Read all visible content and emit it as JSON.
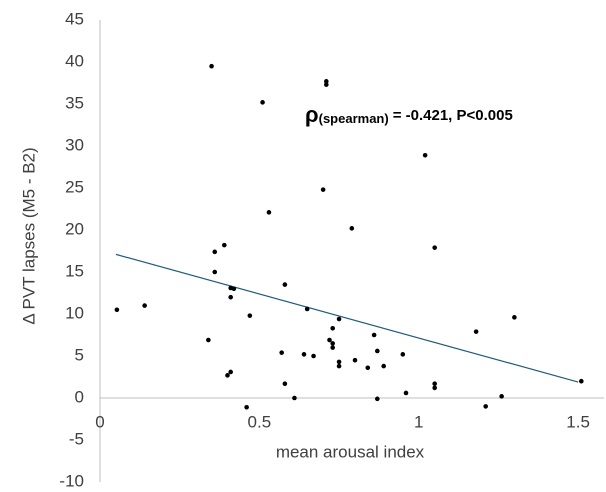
{
  "chart_data": {
    "type": "scatter",
    "x_label": "mean arousal index",
    "y_label": "Δ  PVT lapses (M5 - B2)",
    "annotation": {
      "symbol": "ρ",
      "subscript": "(spearman)",
      "text": "= -0.421, P<0.005"
    },
    "xlim": [
      0,
      1.6
    ],
    "xticks": [
      0,
      0.5,
      1,
      1.5
    ],
    "ylim": [
      -10,
      45
    ],
    "yticks": [
      -10,
      -5,
      0,
      5,
      10,
      15,
      20,
      25,
      30,
      35,
      40,
      45
    ],
    "grid": false,
    "series": [
      {
        "color": "#000000",
        "x": [
          0.053,
          0.14,
          0.35,
          0.51,
          0.71,
          0.71,
          0.7,
          0.53,
          0.79,
          1.02,
          1.05,
          0.36,
          0.39,
          0.36,
          0.58,
          0.41,
          0.42,
          0.41,
          0.47,
          0.65,
          0.75,
          0.73,
          0.34,
          0.72,
          0.73,
          0.73,
          0.64,
          0.67,
          0.57,
          0.8,
          0.75,
          0.75,
          0.84,
          0.89,
          0.87,
          0.86,
          0.95,
          1.18,
          1.3,
          0.41,
          0.4,
          0.58,
          0.96,
          1.05,
          1.05,
          1.51,
          0.61,
          0.87,
          1.26,
          0.46,
          1.21
        ],
        "values": [
          10.5,
          11,
          39.5,
          35.2,
          37.7,
          37.3,
          24.8,
          22.1,
          20.2,
          28.9,
          17.9,
          17.4,
          18.2,
          15,
          13.5,
          13.1,
          13,
          12,
          9.8,
          10.6,
          9.4,
          8.3,
          6.9,
          6.9,
          6.5,
          6,
          5.2,
          5,
          5.4,
          4.5,
          4.3,
          3.8,
          3.6,
          3.8,
          5.6,
          7.5,
          5.2,
          7.9,
          9.6,
          3.1,
          2.7,
          1.7,
          0.6,
          1.7,
          1.2,
          2,
          0,
          -0.1,
          0.2,
          -1.1,
          -1
        ]
      }
    ],
    "trendline": {
      "color": "#1f5c7a",
      "x": [
        0.05,
        1.5
      ],
      "values": [
        17.1,
        1.9
      ]
    }
  }
}
